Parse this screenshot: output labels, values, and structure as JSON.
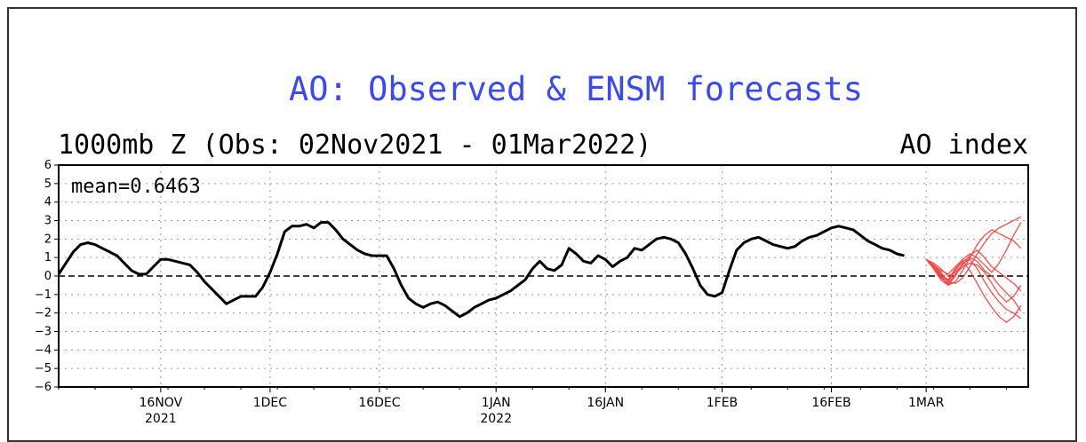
{
  "chart_data": {
    "type": "line",
    "title": "AO: Observed & ENSM forecasts",
    "subtitle_left": "1000mb Z (Obs: 02Nov2021 - 01Mar2022)",
    "subtitle_right": "AO index",
    "annotation": "mean=0.6463",
    "ylim": [
      -6,
      6
    ],
    "y_ticks": [
      6,
      5,
      4,
      3,
      2,
      1,
      0,
      -1,
      -2,
      -3,
      -4,
      -5,
      -6
    ],
    "x_ticks": [
      {
        "label": "16NOV",
        "sub": "2021",
        "date": "2021-11-16"
      },
      {
        "label": "1DEC",
        "sub": "",
        "date": "2021-12-01"
      },
      {
        "label": "16DEC",
        "sub": "",
        "date": "2021-12-16"
      },
      {
        "label": "1JAN",
        "sub": "2022",
        "date": "2022-01-01"
      },
      {
        "label": "16JAN",
        "sub": "",
        "date": "2022-01-16"
      },
      {
        "label": "1FEB",
        "sub": "",
        "date": "2022-02-01"
      },
      {
        "label": "16FEB",
        "sub": "",
        "date": "2022-02-16"
      },
      {
        "label": "1MAR",
        "sub": "",
        "date": "2022-03-01"
      }
    ],
    "xlim": [
      "2021-11-02",
      "2022-03-15"
    ],
    "grid": true,
    "zero_line": "dashed",
    "colors": {
      "observed": "#000000",
      "forecast": "#ff4040",
      "title": "#3b48f5"
    },
    "series": [
      {
        "points": [
          [
            "2021-11-02",
            0.1
          ],
          [
            "2021-11-03",
            0.7
          ],
          [
            "2021-11-04",
            1.3
          ],
          [
            "2021-11-05",
            1.7
          ],
          [
            "2021-11-06",
            1.8
          ],
          [
            "2021-11-07",
            1.7
          ],
          [
            "2021-11-08",
            1.5
          ],
          [
            "2021-11-09",
            1.3
          ],
          [
            "2021-11-10",
            1.1
          ],
          [
            "2021-11-11",
            0.7
          ],
          [
            "2021-11-12",
            0.3
          ],
          [
            "2021-11-13",
            0.1
          ],
          [
            "2021-11-14",
            0.1
          ],
          [
            "2021-11-15",
            0.5
          ],
          [
            "2021-11-16",
            0.9
          ],
          [
            "2021-11-17",
            0.9
          ],
          [
            "2021-11-18",
            0.8
          ],
          [
            "2021-11-19",
            0.7
          ],
          [
            "2021-11-20",
            0.6
          ],
          [
            "2021-11-21",
            0.2
          ],
          [
            "2021-11-22",
            -0.3
          ],
          [
            "2021-11-23",
            -0.7
          ],
          [
            "2021-11-24",
            -1.1
          ],
          [
            "2021-11-25",
            -1.5
          ],
          [
            "2021-11-26",
            -1.3
          ],
          [
            "2021-11-27",
            -1.1
          ],
          [
            "2021-11-28",
            -1.1
          ],
          [
            "2021-11-29",
            -1.1
          ],
          [
            "2021-11-30",
            -0.6
          ],
          [
            "2021-12-01",
            0.2
          ],
          [
            "2021-12-02",
            1.2
          ],
          [
            "2021-12-03",
            2.4
          ],
          [
            "2021-12-04",
            2.7
          ],
          [
            "2021-12-05",
            2.7
          ],
          [
            "2021-12-06",
            2.8
          ],
          [
            "2021-12-07",
            2.6
          ],
          [
            "2021-12-08",
            2.9
          ],
          [
            "2021-12-09",
            2.9
          ],
          [
            "2021-12-10",
            2.5
          ],
          [
            "2021-12-11",
            2.0
          ],
          [
            "2021-12-12",
            1.7
          ],
          [
            "2021-12-13",
            1.4
          ],
          [
            "2021-12-14",
            1.2
          ],
          [
            "2021-12-15",
            1.1
          ],
          [
            "2021-12-16",
            1.1
          ],
          [
            "2021-12-17",
            1.1
          ],
          [
            "2021-12-18",
            0.4
          ],
          [
            "2021-12-19",
            -0.5
          ],
          [
            "2021-12-20",
            -1.2
          ],
          [
            "2021-12-21",
            -1.5
          ],
          [
            "2021-12-22",
            -1.7
          ],
          [
            "2021-12-23",
            -1.5
          ],
          [
            "2021-12-24",
            -1.4
          ],
          [
            "2021-12-25",
            -1.6
          ],
          [
            "2021-12-26",
            -1.9
          ],
          [
            "2021-12-27",
            -2.2
          ],
          [
            "2021-12-28",
            -2.0
          ],
          [
            "2021-12-29",
            -1.7
          ],
          [
            "2021-12-30",
            -1.5
          ],
          [
            "2021-12-31",
            -1.3
          ],
          [
            "2022-01-01",
            -1.2
          ],
          [
            "2022-01-02",
            -1.0
          ],
          [
            "2022-01-03",
            -0.8
          ],
          [
            "2022-01-04",
            -0.5
          ],
          [
            "2022-01-05",
            -0.2
          ],
          [
            "2022-01-06",
            0.4
          ],
          [
            "2022-01-07",
            0.8
          ],
          [
            "2022-01-08",
            0.4
          ],
          [
            "2022-01-09",
            0.3
          ],
          [
            "2022-01-10",
            0.6
          ],
          [
            "2022-01-11",
            1.5
          ],
          [
            "2022-01-12",
            1.2
          ],
          [
            "2022-01-13",
            0.8
          ],
          [
            "2022-01-14",
            0.7
          ],
          [
            "2022-01-15",
            1.1
          ],
          [
            "2022-01-16",
            0.9
          ],
          [
            "2022-01-17",
            0.5
          ],
          [
            "2022-01-18",
            0.8
          ],
          [
            "2022-01-19",
            1.0
          ],
          [
            "2022-01-20",
            1.5
          ],
          [
            "2022-01-21",
            1.4
          ],
          [
            "2022-01-22",
            1.7
          ],
          [
            "2022-01-23",
            2.0
          ],
          [
            "2022-01-24",
            2.1
          ],
          [
            "2022-01-25",
            2.0
          ],
          [
            "2022-01-26",
            1.8
          ],
          [
            "2022-01-27",
            1.2
          ],
          [
            "2022-01-28",
            0.4
          ],
          [
            "2022-01-29",
            -0.5
          ],
          [
            "2022-01-30",
            -1.0
          ],
          [
            "2022-01-31",
            -1.1
          ],
          [
            "2022-02-01",
            -0.9
          ],
          [
            "2022-02-02",
            0.3
          ],
          [
            "2022-02-03",
            1.4
          ],
          [
            "2022-02-04",
            1.8
          ],
          [
            "2022-02-05",
            2.0
          ],
          [
            "2022-02-06",
            2.1
          ],
          [
            "2022-02-07",
            1.9
          ],
          [
            "2022-02-08",
            1.7
          ],
          [
            "2022-02-09",
            1.6
          ],
          [
            "2022-02-10",
            1.5
          ],
          [
            "2022-02-11",
            1.6
          ],
          [
            "2022-02-12",
            1.9
          ],
          [
            "2022-02-13",
            2.1
          ],
          [
            "2022-02-14",
            2.2
          ],
          [
            "2022-02-15",
            2.4
          ],
          [
            "2022-02-16",
            2.6
          ],
          [
            "2022-02-17",
            2.7
          ],
          [
            "2022-02-18",
            2.6
          ],
          [
            "2022-02-19",
            2.5
          ],
          [
            "2022-02-20",
            2.2
          ],
          [
            "2022-02-21",
            1.9
          ],
          [
            "2022-02-22",
            1.7
          ],
          [
            "2022-02-23",
            1.5
          ],
          [
            "2022-02-24",
            1.4
          ],
          [
            "2022-02-25",
            1.2
          ],
          [
            "2022-02-26",
            1.1
          ]
        ]
      }
    ],
    "forecast_members": [
      [
        0.9,
        0.6,
        0.2,
        -0.3,
        -0.4,
        -0.1,
        0.5,
        1.2,
        1.8,
        2.3,
        2.6,
        2.8,
        3.0,
        3.2
      ],
      [
        0.9,
        0.5,
        0.0,
        -0.5,
        -0.3,
        0.3,
        1.0,
        1.7,
        2.2,
        2.5,
        2.3,
        2.1,
        1.9,
        1.5
      ],
      [
        0.9,
        0.7,
        0.4,
        0.0,
        0.2,
        0.6,
        1.1,
        1.4,
        1.0,
        0.5,
        0.2,
        -0.1,
        -0.4,
        -0.8
      ],
      [
        0.9,
        0.4,
        -0.2,
        -0.5,
        0.0,
        0.7,
        0.9,
        0.4,
        -0.3,
        -0.9,
        -1.4,
        -1.8,
        -2.0,
        -2.3
      ],
      [
        0.9,
        0.6,
        0.1,
        -0.2,
        0.4,
        0.8,
        0.3,
        -0.4,
        -1.1,
        -1.7,
        -2.2,
        -2.5,
        -2.2,
        -1.6
      ],
      [
        0.9,
        0.5,
        -0.1,
        -0.4,
        0.1,
        0.5,
        0.7,
        0.6,
        0.2,
        -0.4,
        -1.0,
        -1.4,
        -1.1,
        -0.5
      ],
      [
        0.9,
        0.6,
        0.3,
        0.1,
        0.5,
        0.9,
        1.2,
        1.0,
        0.6,
        0.2,
        0.7,
        1.4,
        2.2,
        2.9
      ],
      [
        0.9,
        0.5,
        0.0,
        -0.3,
        0.3,
        0.8,
        1.0,
        0.8,
        0.3,
        0.0,
        -0.5,
        -0.9,
        -1.3,
        -1.9
      ]
    ],
    "forecast_start": "2022-03-01"
  }
}
